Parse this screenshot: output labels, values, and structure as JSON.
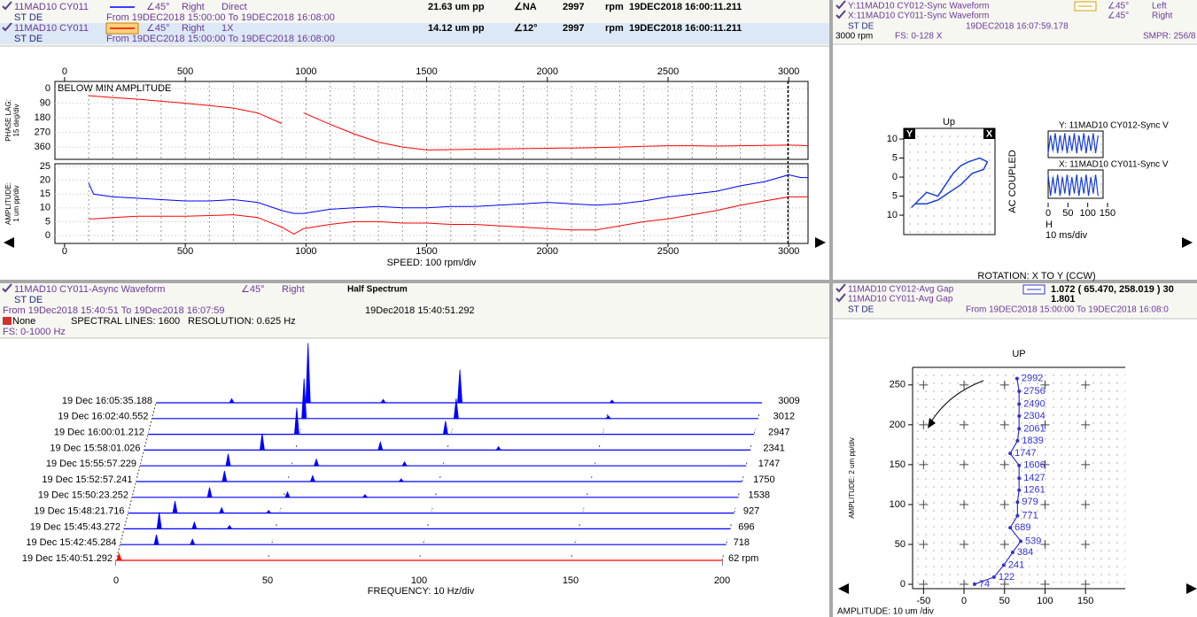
{
  "bode": {
    "rows": [
      {
        "name": "11MAD10 CY011",
        "angle": "∠45°",
        "side": "Right",
        "kind": "Direct",
        "amplitude": "21.63 um pp",
        "phase": "∠NA",
        "speed": 2997,
        "speed_unit": "rpm",
        "time": "19DEC2018 16:00:11.211",
        "color": "#0000ff",
        "machine": "ST DE",
        "range": "From 19DEC2018 15:00:00 To 19DEC2018 16:08:00"
      },
      {
        "name": "11MAD10 CY011",
        "angle": "∠45°",
        "side": "Right",
        "kind": "1X",
        "amplitude": "14.12 um pp",
        "phase": "∠12°",
        "speed": 2997,
        "speed_unit": "rpm",
        "time": "19DEC2018 16:00:11.211",
        "color": "#ff0000",
        "machine": "ST DE",
        "range": "From 19DEC2018 15:00:00 To 19DEC2018 16:08:00"
      }
    ],
    "note": "BELOW MIN AMPLITUDE",
    "xlim": [
      -40,
      3080
    ],
    "xticks": [
      0,
      500,
      1000,
      1500,
      2000,
      2500,
      3000
    ],
    "xgrid": [
      100,
      200,
      300,
      400,
      500,
      600,
      700,
      800,
      900,
      1000,
      1100,
      1200,
      1300,
      1400,
      1500,
      1600,
      1700,
      1800,
      1900,
      2000,
      2100,
      2200,
      2300,
      2400,
      2500,
      2600,
      2700,
      2800,
      2900,
      3000
    ],
    "x_label": "SPEED: 100 rpm/div",
    "x": [
      100,
      120,
      200,
      300,
      400,
      500,
      600,
      700,
      800,
      900,
      950,
      990,
      1100,
      1200,
      1300,
      1400,
      1500,
      1600,
      1700,
      1800,
      1900,
      2000,
      2100,
      2200,
      2300,
      2400,
      2500,
      2600,
      2700,
      2800,
      2900,
      3000,
      3050,
      3080
    ],
    "phase": {
      "label": "PHASE LAG:",
      "sublabel": "15 deg/div",
      "ylim": [
        -44,
        436
      ],
      "inverted": true,
      "yticks": [
        0,
        90,
        180,
        270,
        360
      ],
      "color": "#ff0000",
      "values": [
        44,
        46,
        55,
        65,
        78,
        90,
        105,
        120,
        150,
        215,
        null,
        150,
        220,
        280,
        330,
        360,
        378,
        376,
        374,
        372,
        370,
        368,
        366,
        364,
        360,
        356,
        352,
        352,
        354,
        352,
        350,
        348,
        350,
        352
      ]
    },
    "amplitude": {
      "label": "AMPLITUDE:",
      "sublabel": "1 um pp/div",
      "ylim": [
        -2.9,
        26
      ],
      "yticks": [
        0,
        5,
        10,
        15,
        20,
        25
      ],
      "series": [
        {
          "color": "#0000ff",
          "values": [
            19,
            15,
            14,
            13.5,
            13,
            12.5,
            12.5,
            13,
            12,
            9,
            8,
            8,
            9.5,
            10,
            10.5,
            10,
            10,
            10.5,
            10.5,
            11,
            11.5,
            12,
            11.5,
            11,
            11.5,
            12.5,
            14,
            15,
            16,
            18,
            19.5,
            22,
            21,
            21
          ]
        },
        {
          "color": "#ff0000",
          "values": [
            6,
            6,
            6.5,
            7,
            7,
            7,
            7.2,
            7.5,
            6.5,
            3,
            0.5,
            2.5,
            4,
            5,
            5,
            4.5,
            4.5,
            4,
            4,
            3.5,
            3,
            2.5,
            2,
            2,
            3.5,
            5,
            6,
            7.5,
            9,
            11,
            12.5,
            14,
            14,
            14
          ]
        }
      ]
    }
  },
  "orbit": {
    "rows": [
      {
        "probe": "Y:11MAD10 CY012-Sync Waveform",
        "angle": "∠45°",
        "side": "Left"
      },
      {
        "probe": "X:11MAD10 CY011-Sync Waveform",
        "angle": "∠45°",
        "side": "Right"
      }
    ],
    "machine": "ST DE",
    "time": "19DEC2018 16:07:59.178",
    "speed": "3000 rpm",
    "fs": "FS: 0-128 X",
    "smpr": "SMPR: 256/8",
    "up": "Up",
    "y_tag": "Y",
    "x_tag": "X",
    "coupling": "AC COUPLED",
    "rotation": "ROTATION: X TO Y (CCW)",
    "xlim": [
      -12,
      12
    ],
    "ylim": [
      -15.1,
      12.8
    ],
    "yticks": [
      10,
      5,
      0,
      {
        "value": -5,
        "label": "5"
      },
      {
        "value": -10,
        "label": "10"
      }
    ],
    "color": "#1a3fd6",
    "x": [
      -10,
      -8,
      -6,
      -3,
      -1,
      1,
      3,
      5,
      8,
      10,
      9,
      6,
      3,
      0,
      -3,
      -6,
      -9,
      -10
    ],
    "y": [
      -8,
      -6,
      -4,
      -5,
      -2,
      1,
      3,
      4,
      5,
      4,
      2,
      1,
      -2,
      -4,
      -6,
      -7,
      -7,
      -8
    ],
    "waveforms": {
      "y_title": "Y: 11MAD10 CY012-Sync V",
      "x_title": "X: 11MAD10 CY011-Sync V",
      "xlim": [
        0,
        150
      ],
      "xticks": [
        0,
        50,
        100,
        150
      ],
      "ylim": [
        -6,
        6
      ],
      "h": "H",
      "x_label": "10 ms/div",
      "t": [
        0,
        6,
        12,
        18,
        24,
        30,
        36,
        42,
        48,
        54,
        60,
        66,
        72,
        78,
        84,
        90,
        96,
        102,
        108,
        114,
        120,
        126
      ],
      "y_values": [
        -4,
        4,
        -3,
        5,
        -4,
        4,
        -3,
        5,
        -4,
        4,
        -3,
        5,
        -4,
        4,
        -3,
        5,
        -4,
        4,
        -3,
        5,
        -4,
        4
      ],
      "x_values": [
        4,
        -5,
        3,
        -4,
        4,
        -5,
        3,
        -4,
        4,
        -5,
        3,
        -4,
        4,
        -5,
        3,
        -4,
        4,
        -5,
        3,
        -4,
        4,
        -5
      ]
    }
  },
  "spectrum": {
    "title": "11MAD10 CY011-Async Waveform",
    "angle": "∠45°",
    "side": "Right",
    "mode": "Half Spectrum",
    "machine": "ST DE",
    "range": "From 19Dec2018 15:40:51 To 19Dec2018 16:07:59",
    "time": "19Dec2018 15:40:51.292",
    "window": "None",
    "lines": "SPECTRAL LINES: 1600",
    "resolution": "RESOLUTION: 0.625 Hz",
    "fs": "FS: 0-1000 Hz",
    "xlim": [
      0,
      200
    ],
    "xticks": [
      0,
      50,
      100,
      150,
      200
    ],
    "x_label": "FREQUENCY: 10 Hz/div",
    "amp_lim": [
      0,
      10
    ],
    "color": "#0000ff",
    "front_color": "#ff0000",
    "traces": [
      {
        "time": "19 Dec 16:05:35.188",
        "rpm": 3009,
        "peaks": [
          [
            25,
            0.6
          ],
          [
            50.2,
            9
          ],
          [
            75,
            0.5
          ],
          [
            100.3,
            5
          ],
          [
            150.5,
            0.4
          ]
        ]
      },
      {
        "time": "19 Dec 16:02:40.552",
        "rpm": 3012,
        "peaks": [
          [
            50.2,
            6
          ],
          [
            100.4,
            3
          ],
          [
            150.6,
            0.4
          ]
        ]
      },
      {
        "time": "19 Dec 16:00:01.212",
        "rpm": 2947,
        "peaks": [
          [
            49.1,
            4
          ],
          [
            98.2,
            2
          ]
        ]
      },
      {
        "time": "19 Dec 15:58:01.026",
        "rpm": 2341,
        "peaks": [
          [
            39,
            2.5
          ],
          [
            78,
            1.2
          ],
          [
            117,
            0.5
          ]
        ]
      },
      {
        "time": "19 Dec 15:55:57.229",
        "rpm": 1747,
        "peaks": [
          [
            29.1,
            1.8
          ],
          [
            58.2,
            1
          ],
          [
            87.3,
            0.6
          ]
        ]
      },
      {
        "time": "19 Dec 15:52:57.241",
        "rpm": 1750,
        "peaks": [
          [
            29.2,
            1.6
          ],
          [
            58.3,
            0.9
          ],
          [
            87.5,
            0.4
          ]
        ]
      },
      {
        "time": "19 Dec 15:50:23.252",
        "rpm": 1538,
        "peaks": [
          [
            25.6,
            1.5
          ],
          [
            51.3,
            0.8
          ],
          [
            76.9,
            0.4
          ]
        ]
      },
      {
        "time": "19 Dec 15:48:21.716",
        "rpm": 927,
        "peaks": [
          [
            15.5,
            1.8
          ],
          [
            30.9,
            0.8
          ],
          [
            46.4,
            0.4
          ]
        ]
      },
      {
        "time": "19 Dec 15:45:43.272",
        "rpm": 696,
        "peaks": [
          [
            11.6,
            2.5
          ],
          [
            23.2,
            1
          ],
          [
            34.8,
            0.5
          ]
        ]
      },
      {
        "time": "19 Dec 15:42:45.284",
        "rpm": 718,
        "peaks": [
          [
            12,
            1.5
          ],
          [
            23.9,
            0.8
          ]
        ]
      },
      {
        "time": "19 Dec 15:40:51.292",
        "rpm": "62 rpm",
        "peaks": [
          [
            1,
            1
          ]
        ]
      }
    ]
  },
  "centerline": {
    "rows": [
      {
        "probe": "11MAD10 CY012-Avg Gap",
        "value": "1.072 ( 65.470, 258.019 ) 30"
      },
      {
        "probe": "11MAD10 CY011-Avg Gap",
        "value": "1.801"
      }
    ],
    "machine": "ST DE",
    "range": "From 19DEC2018 15:00:00 To 19DEC2018 16:08:0",
    "up": "UP",
    "y_label": "AMPLITUDE: 2 um pp/div",
    "x_label": "AMPLITUDE: 10 um /div",
    "xlim": [
      -63.5,
      199
    ],
    "ylim": [
      -5.5,
      272
    ],
    "xticks": [
      -50,
      0,
      50,
      100,
      150
    ],
    "yticks": [
      0,
      50,
      100,
      150,
      200,
      250
    ],
    "color": "#3333cc",
    "x": [
      13,
      37,
      49,
      60,
      70,
      57,
      66,
      66,
      68,
      68,
      68,
      57,
      66,
      68,
      68,
      68,
      68,
      65.47
    ],
    "y": [
      0,
      9,
      24,
      40,
      54,
      71,
      86,
      103,
      118,
      133,
      149,
      164,
      180,
      195,
      211,
      226,
      242,
      258.019
    ],
    "speeds": [
      74,
      122,
      241,
      384,
      539,
      689,
      771,
      979,
      1261,
      1427,
      1606,
      1747,
      1839,
      2061,
      2304,
      2490,
      2756,
      2992
    ]
  }
}
